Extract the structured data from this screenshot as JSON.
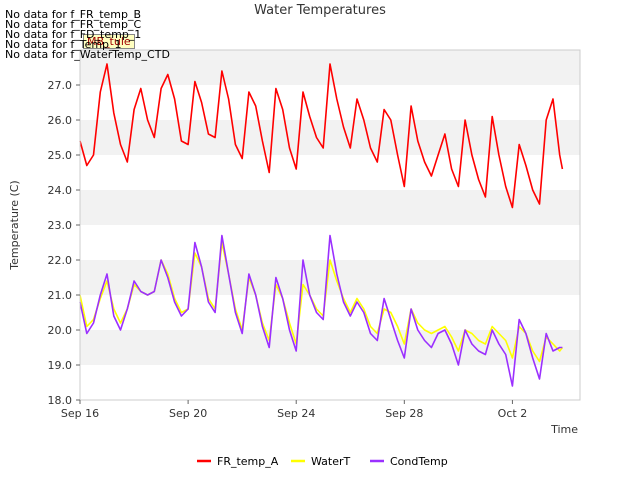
{
  "no_data_messages": [
    "No data for f_FR_temp_B",
    "No data for f_FR_temp_C",
    "No data for f_FD_temp_1",
    "No data for f_Temp_1",
    "No data for f_WaterTemp_CTD"
  ],
  "site_badge": "MB_tule",
  "chart_data": {
    "type": "line",
    "title": "Water Temperatures",
    "xlabel": "Time",
    "ylabel": "Temperature (C)",
    "x_range_days": [
      0,
      18.5
    ],
    "ylim": [
      18.0,
      28.0
    ],
    "yticks": [
      18.0,
      19.0,
      20.0,
      21.0,
      22.0,
      23.0,
      24.0,
      25.0,
      26.0,
      27.0
    ],
    "ytick_labels": [
      "18.0",
      "19.0",
      "20.0",
      "21.0",
      "22.0",
      "23.0",
      "24.0",
      "25.0",
      "26.0",
      "27.0"
    ],
    "xticks_days": [
      0,
      4,
      8,
      12,
      16
    ],
    "xtick_labels": [
      "Sep 16",
      "Sep 20",
      "Sep 24",
      "Sep 28",
      "Oct 2"
    ],
    "grid": "horizontal bands",
    "legend_position": "bottom-center",
    "series": [
      {
        "name": "FR_temp_A",
        "color": "#ff0000",
        "x": [
          0.0,
          0.25,
          0.5,
          0.75,
          1.0,
          1.25,
          1.5,
          1.75,
          2.0,
          2.25,
          2.5,
          2.75,
          3.0,
          3.25,
          3.5,
          3.75,
          4.0,
          4.25,
          4.5,
          4.75,
          5.0,
          5.25,
          5.5,
          5.75,
          6.0,
          6.25,
          6.5,
          6.75,
          7.0,
          7.25,
          7.5,
          7.75,
          8.0,
          8.25,
          8.5,
          8.75,
          9.0,
          9.25,
          9.5,
          9.75,
          10.0,
          10.25,
          10.5,
          10.75,
          11.0,
          11.25,
          11.5,
          11.75,
          12.0,
          12.25,
          12.5,
          12.75,
          13.0,
          13.25,
          13.5,
          13.75,
          14.0,
          14.25,
          14.5,
          14.75,
          15.0,
          15.25,
          15.5,
          15.75,
          16.0,
          16.25,
          16.5,
          16.75,
          17.0,
          17.25,
          17.5,
          17.75,
          17.85
        ],
        "y": [
          25.4,
          24.7,
          25.0,
          26.8,
          27.6,
          26.2,
          25.3,
          24.8,
          26.3,
          26.9,
          26.0,
          25.5,
          26.9,
          27.3,
          26.6,
          25.4,
          25.3,
          27.1,
          26.5,
          25.6,
          25.5,
          27.4,
          26.6,
          25.3,
          24.9,
          26.8,
          26.4,
          25.4,
          24.5,
          26.9,
          26.3,
          25.2,
          24.6,
          26.8,
          26.1,
          25.5,
          25.2,
          27.6,
          26.6,
          25.8,
          25.2,
          26.6,
          26.0,
          25.2,
          24.8,
          26.3,
          26.0,
          25.0,
          24.1,
          26.4,
          25.4,
          24.8,
          24.4,
          25.0,
          25.6,
          24.6,
          24.1,
          26.0,
          25.0,
          24.3,
          23.8,
          26.1,
          25.0,
          24.1,
          23.5,
          25.3,
          24.7,
          24.0,
          23.6,
          26.0,
          26.6,
          25.0,
          24.6
        ]
      },
      {
        "name": "WaterT",
        "color": "#ffff00",
        "x": [
          0.0,
          0.25,
          0.5,
          0.75,
          1.0,
          1.25,
          1.5,
          1.75,
          2.0,
          2.25,
          2.5,
          2.75,
          3.0,
          3.25,
          3.5,
          3.75,
          4.0,
          4.25,
          4.5,
          4.75,
          5.0,
          5.25,
          5.5,
          5.75,
          6.0,
          6.25,
          6.5,
          6.75,
          7.0,
          7.25,
          7.5,
          7.75,
          8.0,
          8.25,
          8.5,
          8.75,
          9.0,
          9.25,
          9.5,
          9.75,
          10.0,
          10.25,
          10.5,
          10.75,
          11.0,
          11.25,
          11.5,
          11.75,
          12.0,
          12.25,
          12.5,
          12.75,
          13.0,
          13.25,
          13.5,
          13.75,
          14.0,
          14.25,
          14.5,
          14.75,
          15.0,
          15.25,
          15.5,
          15.75,
          16.0,
          16.25,
          16.5,
          16.75,
          17.0,
          17.25,
          17.5,
          17.75,
          17.85
        ],
        "y": [
          21.0,
          20.1,
          20.3,
          20.9,
          21.4,
          20.6,
          20.2,
          20.6,
          21.3,
          21.1,
          21.0,
          21.1,
          22.0,
          21.6,
          20.9,
          20.5,
          20.6,
          22.2,
          21.8,
          20.9,
          20.6,
          22.5,
          21.6,
          20.6,
          20.0,
          21.5,
          21.0,
          20.2,
          19.7,
          21.3,
          20.9,
          20.2,
          19.6,
          21.3,
          21.0,
          20.6,
          20.4,
          22.0,
          21.4,
          20.9,
          20.5,
          20.9,
          20.6,
          20.1,
          19.9,
          20.6,
          20.5,
          20.1,
          19.6,
          20.6,
          20.2,
          20.0,
          19.9,
          20.0,
          20.1,
          19.8,
          19.4,
          20.0,
          19.9,
          19.7,
          19.6,
          20.1,
          19.9,
          19.7,
          19.2,
          20.1,
          19.9,
          19.4,
          19.1,
          19.8,
          19.6,
          19.4,
          19.5
        ]
      },
      {
        "name": "CondTemp",
        "color": "#9b30ff",
        "x": [
          0.0,
          0.25,
          0.5,
          0.75,
          1.0,
          1.25,
          1.5,
          1.75,
          2.0,
          2.25,
          2.5,
          2.75,
          3.0,
          3.25,
          3.5,
          3.75,
          4.0,
          4.25,
          4.5,
          4.75,
          5.0,
          5.25,
          5.5,
          5.75,
          6.0,
          6.25,
          6.5,
          6.75,
          7.0,
          7.25,
          7.5,
          7.75,
          8.0,
          8.25,
          8.5,
          8.75,
          9.0,
          9.25,
          9.5,
          9.75,
          10.0,
          10.25,
          10.5,
          10.75,
          11.0,
          11.25,
          11.5,
          11.75,
          12.0,
          12.25,
          12.5,
          12.75,
          13.0,
          13.25,
          13.5,
          13.75,
          14.0,
          14.25,
          14.5,
          14.75,
          15.0,
          15.25,
          15.5,
          15.75,
          16.0,
          16.25,
          16.5,
          16.75,
          17.0,
          17.25,
          17.5,
          17.75,
          17.85
        ],
        "y": [
          20.8,
          19.9,
          20.2,
          21.0,
          21.6,
          20.4,
          20.0,
          20.6,
          21.4,
          21.1,
          21.0,
          21.1,
          22.0,
          21.5,
          20.8,
          20.4,
          20.6,
          22.5,
          21.8,
          20.8,
          20.5,
          22.7,
          21.6,
          20.5,
          19.9,
          21.6,
          21.0,
          20.1,
          19.5,
          21.5,
          20.9,
          20.0,
          19.4,
          22.0,
          21.0,
          20.5,
          20.3,
          22.7,
          21.6,
          20.8,
          20.4,
          20.8,
          20.5,
          19.9,
          19.7,
          20.9,
          20.3,
          19.7,
          19.2,
          20.6,
          20.0,
          19.7,
          19.5,
          19.9,
          20.0,
          19.6,
          19.0,
          20.0,
          19.6,
          19.4,
          19.3,
          20.0,
          19.6,
          19.3,
          18.4,
          20.3,
          19.9,
          19.2,
          18.6,
          19.9,
          19.4,
          19.5,
          19.5
        ]
      }
    ]
  }
}
